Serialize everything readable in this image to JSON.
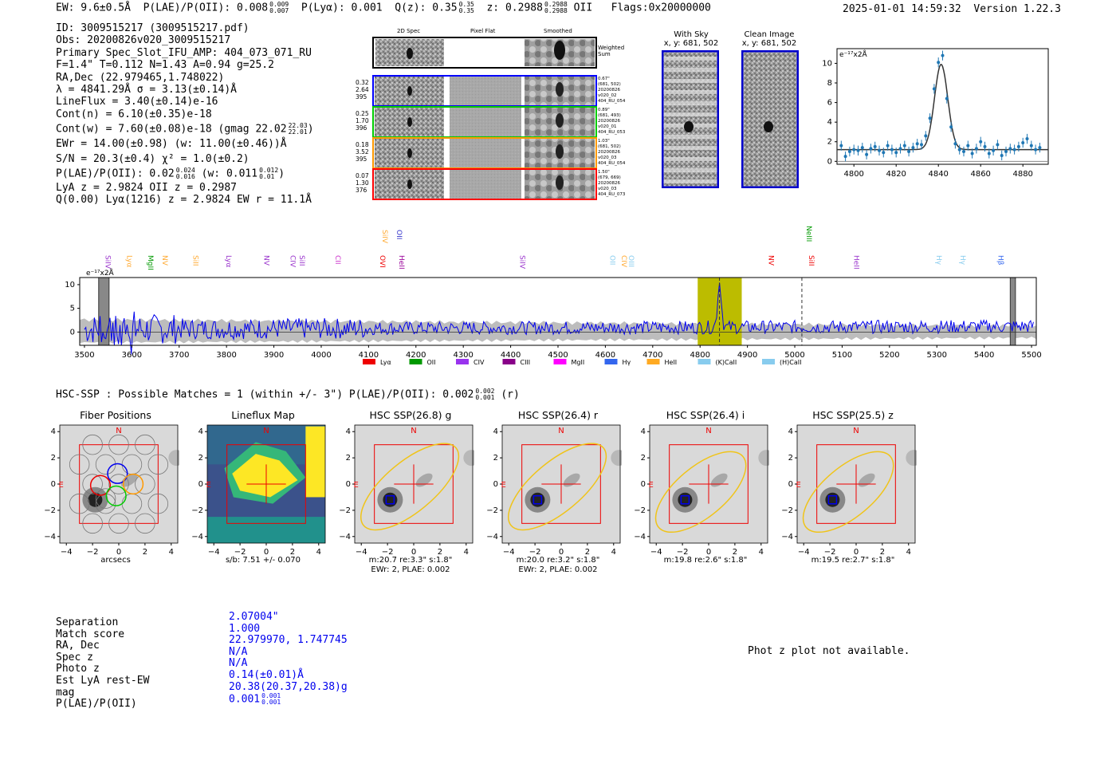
{
  "header": {
    "ew": "EW: 9.6±0.5Å",
    "plae_label": "P(LAE)/P(OII): 0.008",
    "plae_hi": "0.009",
    "plae_lo": "0.007",
    "plya": "P(Lyα): 0.001",
    "qz": "Q(z): 0.35",
    "qz_hi": "0.35",
    "qz_lo": "0.35",
    "z": "z: 0.2988",
    "z_hi": "0.2988",
    "z_lo": "0.2988",
    "z_line": "OII",
    "flags": "Flags:0x20000000",
    "timestamp": "2025-01-01 14:59:32",
    "version": "Version 1.22.3"
  },
  "info": {
    "id": "ID: 3009515217 (3009515217.pdf)",
    "obs": "Obs: 20200826v020_3009515217",
    "primary": "Primary Spec_Slot_IFU_AMP: 404_073_071_RU",
    "params": "F=1.4\"  T=0.112  N=1.43  A=0.94  g=25.2",
    "radec": "RA,Dec (22.979465,1.748022)",
    "lambda": "λ = 4841.29Å   σ = 3.13(±0.14)Å",
    "lineflux": "LineFlux = 3.40(±0.14)e-16",
    "contn": "Cont(n) = 6.10(±0.35)e-18",
    "contw": "Cont(w) = 7.60(±0.08)e-18 (gmag 22.02",
    "contw_hi": "22.03",
    "contw_lo": "22.01",
    "contw_end": ")",
    "ewr": "EWr = 14.00(±0.98) (w: 11.00(±0.46))Å",
    "sn": "S/N = 20.3(±0.4)  χ² = 1.0(±0.2)",
    "plae": "P(LAE)/P(OII): 0.02",
    "plae_hi": "0.024",
    "plae_lo": "0.016",
    "plae_w": "(w: 0.011",
    "plae_w_hi": "0.012",
    "plae_w_lo": "0.01",
    "plae_end": ")",
    "lya_z": "LyA z = 2.9824  OII z = 0.2987",
    "q": "Q(0.00) Lyα(1216) z = 2.9824  EW r = 11.1Å"
  },
  "cutouts": {
    "col_headers": [
      "2D Spec",
      "Pixel Flat",
      "Smoothed"
    ],
    "weighted_sum": [
      "Weighted",
      "Sum"
    ],
    "rows": [
      {
        "left": [
          "0.32",
          "2.64",
          "395"
        ],
        "right": [
          "0.67\"",
          "(681, 502)",
          "20200826",
          "v020_02",
          "404_RU_054"
        ],
        "color": "#0000ff"
      },
      {
        "left": [
          "0.25",
          "1.70",
          "396"
        ],
        "right": [
          "0.89\"",
          "(681, 493)",
          "20200826",
          "v020_01",
          "404_RU_053"
        ],
        "color": "#00cc00"
      },
      {
        "left": [
          "0.18",
          "3.52",
          "395"
        ],
        "right": [
          "1.03\"",
          "(681, 502)",
          "20200826",
          "v020_03",
          "404_RU_054"
        ],
        "color": "#ff9900"
      },
      {
        "left": [
          "0.07",
          "1.30",
          "376"
        ],
        "right": [
          "1.50\"",
          "(679, 669)",
          "20200826",
          "v020_03",
          "404_RU_073"
        ],
        "color": "#ff0000"
      }
    ]
  },
  "sky": {
    "with_sky_title": "With Sky",
    "with_sky_xy": "x, y: 681, 502",
    "clean_title": "Clean Image",
    "clean_xy": "x, y: 681, 502"
  },
  "chart_data": [
    {
      "type": "scatter",
      "name": "line-fit",
      "title": "",
      "ylabel": "e⁻¹⁷x2Å",
      "xlim": [
        4792,
        4892
      ],
      "ylim": [
        -0.3,
        11.5
      ],
      "xticks": [
        4800,
        4820,
        4840,
        4860,
        4880
      ],
      "yticks": [
        0,
        2,
        4,
        6,
        8,
        10
      ],
      "fit": {
        "center": 4841.29,
        "sigma": 3.13,
        "amplitude": 8.7,
        "continuum": 1.2
      },
      "x": [
        4794,
        4796,
        4798,
        4800,
        4802,
        4804,
        4806,
        4808,
        4810,
        4812,
        4814,
        4816,
        4818,
        4820,
        4822,
        4824,
        4826,
        4828,
        4830,
        4832,
        4834,
        4836,
        4838,
        4840,
        4842,
        4844,
        4846,
        4848,
        4850,
        4852,
        4854,
        4856,
        4858,
        4860,
        4862,
        4864,
        4866,
        4868,
        4870,
        4872,
        4874,
        4876,
        4878,
        4880,
        4882,
        4884,
        4886,
        4888
      ],
      "y": [
        1.6,
        0.5,
        1.0,
        1.2,
        1.1,
        1.4,
        0.7,
        1.3,
        1.5,
        1.1,
        0.9,
        1.6,
        1.2,
        0.9,
        1.3,
        1.6,
        1.0,
        1.4,
        1.8,
        1.7,
        2.6,
        4.4,
        7.4,
        10.1,
        10.8,
        6.4,
        3.5,
        1.8,
        1.2,
        1.0,
        1.6,
        0.8,
        1.3,
        2.0,
        1.5,
        0.8,
        1.1,
        1.7,
        0.6,
        1.0,
        1.3,
        1.2,
        1.5,
        1.9,
        2.3,
        1.6,
        1.2,
        1.4
      ]
    },
    {
      "type": "line",
      "name": "full-spectrum",
      "title": "",
      "ylabel": "e⁻¹⁷x2Å",
      "xlim": [
        3490,
        5510
      ],
      "ylim": [
        -2.8,
        11.5
      ],
      "xticks": [
        3500,
        3600,
        3700,
        3800,
        3900,
        4000,
        4100,
        4200,
        4300,
        4400,
        4500,
        4600,
        4700,
        4800,
        4900,
        5000,
        5100,
        5200,
        5300,
        5400,
        5500
      ],
      "yticks": [
        0,
        5,
        10
      ],
      "highlight_band": [
        4795,
        4888
      ],
      "dashed_lines": [
        4841,
        5015
      ],
      "masked": [
        [
          3530,
          3552
        ],
        [
          5455,
          5466
        ]
      ],
      "line_labels": [
        {
          "x": 3545,
          "label": "SiIV",
          "color": "#9933cc",
          "row": 0
        },
        {
          "x": 3590,
          "label": "Lyα",
          "color": "#ffaa33",
          "row": 0
        },
        {
          "x": 3635,
          "label": "MgII",
          "color": "#009900",
          "row": 0
        },
        {
          "x": 3665,
          "label": "NV",
          "color": "#ffaa33",
          "row": 0
        },
        {
          "x": 3730,
          "label": "SiII",
          "color": "#ffaa33",
          "row": 0
        },
        {
          "x": 3800,
          "label": "Lyα",
          "color": "#9933cc",
          "row": 0
        },
        {
          "x": 3880,
          "label": "NV",
          "color": "#9933cc",
          "row": 0
        },
        {
          "x": 3935,
          "label": "CIV",
          "color": "#9933cc",
          "row": 0
        },
        {
          "x": 3955,
          "label": "SiII",
          "color": "#9933cc",
          "row": 0
        },
        {
          "x": 4030,
          "label": "CII",
          "color": "#cc33cc",
          "row": 0
        },
        {
          "x": 4125,
          "label": "OVI",
          "color": "#ee0000",
          "row": 0
        },
        {
          "x": 4130,
          "label": "SiIV",
          "color": "#ffaa33",
          "row": 1
        },
        {
          "x": 4165,
          "label": "HeII",
          "color": "#990099",
          "row": 0
        },
        {
          "x": 4160,
          "label": "OII",
          "color": "#3333cc",
          "row": 1
        },
        {
          "x": 4420,
          "label": "SiIV",
          "color": "#9933cc",
          "row": 0
        },
        {
          "x": 4610,
          "label": "OII",
          "color": "#88ccee",
          "row": 0
        },
        {
          "x": 4635,
          "label": "CIV",
          "color": "#ffaa33",
          "row": 0
        },
        {
          "x": 4650,
          "label": "OIII",
          "color": "#88ccee",
          "row": 0
        },
        {
          "x": 4945,
          "label": "NV",
          "color": "#ee0000",
          "row": 0
        },
        {
          "x": 5030,
          "label": "SiII",
          "color": "#ee0000",
          "row": 0
        },
        {
          "x": 5025,
          "label": "NeIII",
          "color": "#009900",
          "row": 2
        },
        {
          "x": 5125,
          "label": "HeII",
          "color": "#9933cc",
          "row": 0
        },
        {
          "x": 5300,
          "label": "Hγ",
          "color": "#88ccee",
          "row": 0
        },
        {
          "x": 5350,
          "label": "Hγ",
          "color": "#88ccee",
          "row": 0
        },
        {
          "x": 5430,
          "label": "Hβ",
          "color": "#3366ee",
          "row": 0
        }
      ],
      "legend": [
        {
          "label": "Lyα",
          "color": "#ee0000"
        },
        {
          "label": "OII",
          "color": "#009900"
        },
        {
          "label": "CIV",
          "color": "#9933ee"
        },
        {
          "label": "CIII",
          "color": "#880088"
        },
        {
          "label": "MgII",
          "color": "#ff00ff"
        },
        {
          "label": "Hγ",
          "color": "#3366ee"
        },
        {
          "label": "HeII",
          "color": "#ffaa22"
        },
        {
          "label": "(K)CaII",
          "color": "#88ccee"
        },
        {
          "label": "(H)CaII",
          "color": "#88ccee"
        }
      ]
    }
  ],
  "hsc": {
    "summary": "HSC-SSP : Possible Matches = 1 (within +/- 3\")  P(LAE)/P(OII): 0.002",
    "summary_hi": "0.002",
    "summary_lo": "0.001",
    "summary_end": "(r)",
    "panels": [
      {
        "title": "Fiber Positions",
        "sub1": "arcsecs",
        "sub2": ""
      },
      {
        "title": "Lineflux Map",
        "sub1": "s/b: 7.51 +/- 0.070",
        "sub2": ""
      },
      {
        "title": "HSC SSP(26.8) g",
        "sub1": "m:20.7  re:3.3\"  s:1.8\"",
        "sub2": "EWr: 2, PLAE: 0.002"
      },
      {
        "title": "HSC SSP(26.4) r",
        "sub1": "m:20.0  re:3.2\"  s:1.8\"",
        "sub2": "EWr: 2, PLAE: 0.002"
      },
      {
        "title": "HSC SSP(26.4) i",
        "sub1": "m:19.8  re:2.6\"  s:1.8\"",
        "sub2": ""
      },
      {
        "title": "HSC SSP(25.5) z",
        "sub1": "m:19.5  re:2.7\"  s:1.8\"",
        "sub2": ""
      }
    ],
    "axis_ticks": [
      "−4",
      "−2",
      "0",
      "2",
      "4"
    ],
    "n_label": "N",
    "e_label": "E"
  },
  "match_table": {
    "keys": [
      "Separation",
      "Match score",
      "RA, Dec",
      "Spec z",
      "Photo z",
      "Est LyA rest-EW",
      "mag",
      "P(LAE)/P(OII)"
    ],
    "values": [
      "2.07004\"",
      "1.000",
      "22.979970, 1.747745",
      "N/A",
      "N/A",
      "0.14(±0.01)Å",
      "20.38(20.37,20.38)g",
      "0.001"
    ],
    "plae_hi": "0.001",
    "plae_lo": "0.001"
  },
  "photz_message": "Phot z plot not available."
}
